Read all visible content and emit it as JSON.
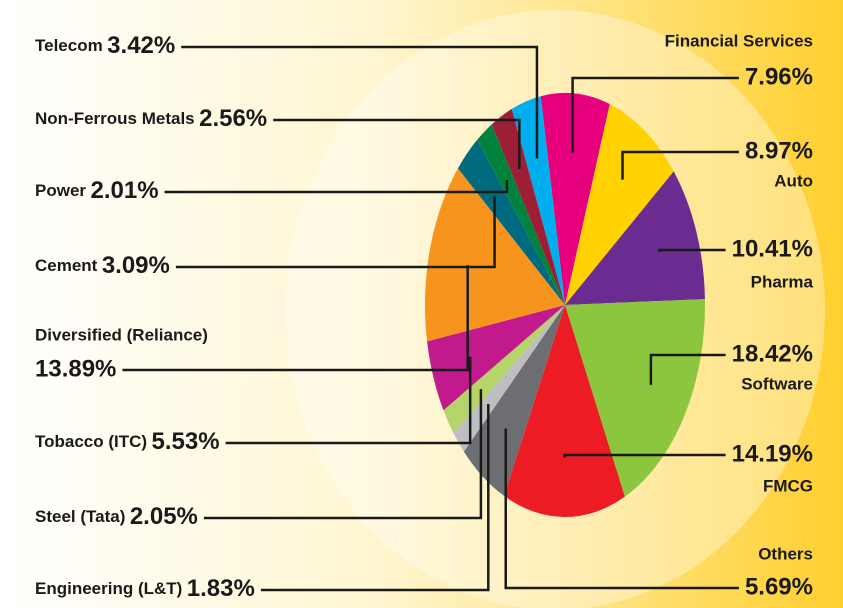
{
  "chart_data": {
    "type": "pie",
    "categories": [
      "Financial Services",
      "Auto",
      "Pharma",
      "Software",
      "FMCG",
      "Others",
      "Engineering (L&T)",
      "Steel (Tata)",
      "Tobacco (ITC)",
      "Diversified (Reliance)",
      "Cement",
      "Power",
      "Non-Ferrous Metals",
      "Telecom"
    ],
    "values": [
      7.96,
      8.97,
      10.41,
      18.42,
      14.19,
      5.69,
      1.83,
      2.05,
      5.53,
      13.89,
      3.09,
      2.01,
      2.56,
      3.42
    ],
    "value_labels": [
      "7.96%",
      "8.97%",
      "10.41%",
      "18.42%",
      "14.19%",
      "5.69%",
      "1.83%",
      "2.05%",
      "5.53%",
      "13.89%",
      "3.09%",
      "2.01%",
      "2.56%",
      "3.42%"
    ],
    "colors": [
      "#e6007e",
      "#ffd200",
      "#6b2c91",
      "#8cc63f",
      "#ed1c24",
      "#6d6e71",
      "#bcbec0",
      "#b5d56a",
      "#c2198c",
      "#f7941d",
      "#006b7f",
      "#00843d",
      "#9e1f35",
      "#00aeef"
    ]
  }
}
